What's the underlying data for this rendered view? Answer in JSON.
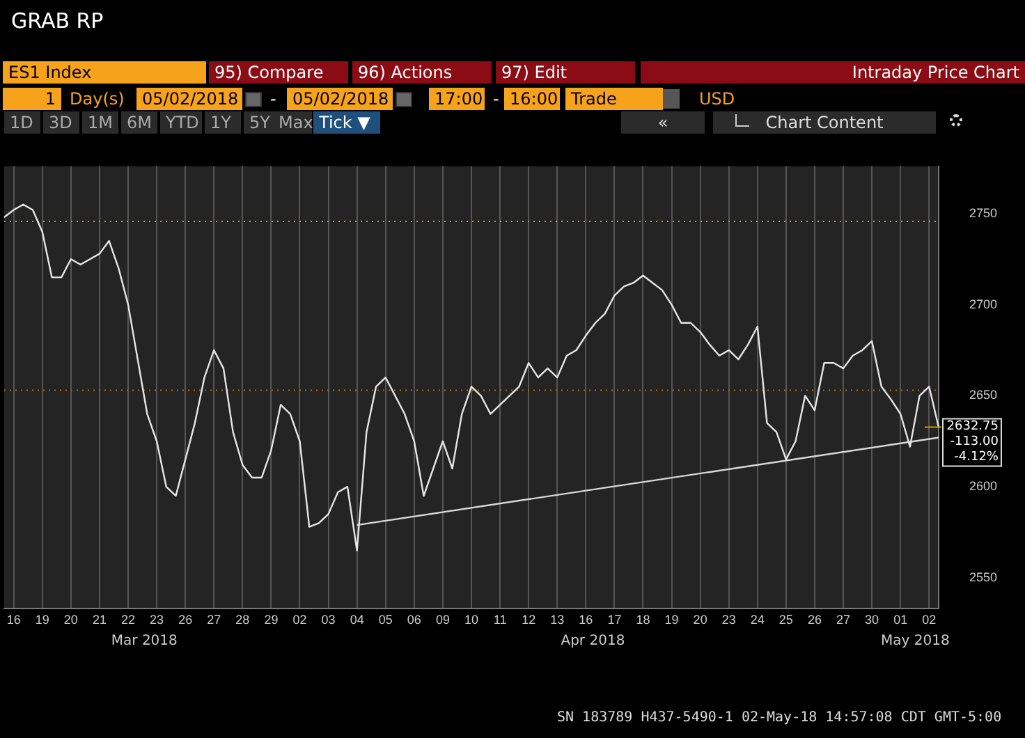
{
  "chart_data": {
    "type": "line",
    "title": "GRAB RP",
    "categories": [
      null,
      "16",
      null,
      null,
      "19",
      null,
      null,
      "20",
      null,
      null,
      "21",
      null,
      null,
      "22",
      null,
      null,
      "23",
      null,
      null,
      "26",
      null,
      null,
      "27",
      null,
      null,
      "28",
      null,
      null,
      "29",
      null,
      null,
      "02",
      null,
      null,
      "03",
      null,
      null,
      "04",
      null,
      null,
      "05",
      null,
      null,
      "06",
      null,
      null,
      "09",
      null,
      null,
      "10",
      null,
      null,
      "11",
      null,
      null,
      "12",
      null,
      null,
      "13",
      null,
      null,
      "16",
      null,
      null,
      "17",
      null,
      null,
      "18",
      null,
      null,
      "19",
      null,
      null,
      "20",
      null,
      null,
      "23",
      null,
      null,
      "24",
      null,
      null,
      "25",
      null,
      null,
      "26",
      null,
      null,
      "27",
      null,
      null,
      "30",
      null,
      null,
      "01",
      null,
      null,
      "02",
      null
    ],
    "series": [
      {
        "color": "#e6e6e6",
        "values": [
          2748,
          2752,
          2755,
          2752,
          2740,
          2715,
          2715,
          2725,
          2722,
          2725,
          2728,
          2735,
          2720,
          2700,
          2670,
          2640,
          2625,
          2600,
          2595,
          2615,
          2635,
          2660,
          2675,
          2665,
          2630,
          2612,
          2605,
          2605,
          2620,
          2645,
          2640,
          2625,
          2578,
          2580,
          2585,
          2597,
          2600,
          2565,
          2630,
          2655,
          2660,
          2650,
          2640,
          2625,
          2595,
          2610,
          2625,
          2610,
          2640,
          2655,
          2650,
          2640,
          2645,
          2650,
          2655,
          2668,
          2660,
          2665,
          2660,
          2672,
          2675,
          2683,
          2690,
          2695,
          2705,
          2710,
          2712,
          2716,
          2712,
          2708,
          2700,
          2690,
          2690,
          2685,
          2678,
          2672,
          2675,
          2670,
          2678,
          2688,
          2635,
          2630,
          2615,
          2625,
          2650,
          2642,
          2668,
          2668,
          2665,
          2672,
          2675,
          2680,
          2655,
          2648,
          2640,
          2622,
          2650,
          2655,
          2632.75
        ]
      },
      {
        "color": "#d9d9d9",
        "values": [
          null,
          null,
          null,
          null,
          null,
          null,
          null,
          null,
          null,
          null,
          null,
          null,
          null,
          null,
          null,
          null,
          null,
          null,
          null,
          null,
          null,
          null,
          null,
          null,
          null,
          null,
          null,
          null,
          null,
          null,
          null,
          null,
          null,
          null,
          null,
          null,
          null,
          2579,
          null,
          null,
          null,
          null,
          null,
          null,
          null,
          null,
          null,
          null,
          null,
          null,
          null,
          null,
          null,
          null,
          null,
          null,
          null,
          null,
          null,
          null,
          null,
          null,
          null,
          null,
          null,
          null,
          null,
          null,
          null,
          null,
          null,
          null,
          null,
          null,
          null,
          null,
          null,
          null,
          null,
          null,
          null,
          null,
          null,
          null,
          null,
          null,
          null,
          null,
          null,
          null,
          null,
          null,
          null,
          null,
          null,
          null,
          null,
          null,
          2627
        ]
      }
    ],
    "ylim": [
      2533,
      2776
    ],
    "yticks": [
      2550,
      2600,
      2650,
      2700,
      2750
    ],
    "grid": "x",
    "marker": "none",
    "line_style": "solid",
    "legend": false,
    "ref_lines": [
      {
        "axis": "y",
        "value": 2745.75,
        "color": "#c8a000",
        "line_style": "dotted"
      },
      {
        "axis": "y",
        "value": 2653,
        "color": "#b86a00",
        "line_style": "dotted"
      }
    ],
    "annotations": [
      "ES1 Index",
      "95) Compare",
      "96) Actions",
      "97) Edit",
      "Intraday Price Chart",
      "1",
      "Day(s)",
      "05/02/2018",
      "-",
      "05/02/2018",
      "17:00",
      "-",
      "16:00",
      "Trade",
      "USD",
      "1D",
      "3D",
      "1M",
      "6M",
      "YTD",
      "1Y",
      "5Y",
      "Max",
      "Tick ▼",
      "«",
      "Chart Content",
      "Mar 2018",
      "Apr 2018",
      "May 2018",
      "2632.75",
      "-113.00",
      "-4.12%",
      "SN 183789 H437-5490-1 02-May-18 14:57:08 CDT GMT-5:00"
    ]
  }
}
